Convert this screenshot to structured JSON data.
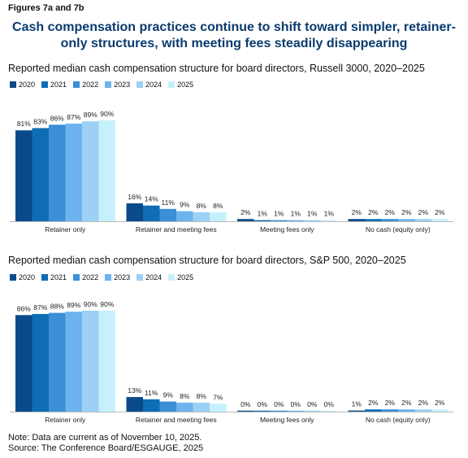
{
  "figure_label": "Figures 7a and 7b",
  "headline": "Cash compensation practices continue to shift toward simpler, retainer-only structures, with meeting fees steadily disappearing",
  "note": "Note: Data are current as of November 10, 2025.",
  "source": "Source: The Conference Board/ESGAUGE, 2025",
  "colors": [
    "#0a4a8a",
    "#0f6db5",
    "#3a8fd6",
    "#6fb3ee",
    "#9dd0f5",
    "#c6f0fb"
  ],
  "chart_data": [
    {
      "type": "bar",
      "title": "Reported median cash compensation structure for board directors, Russell 3000, 2020–2025",
      "categories": [
        "Retainer only",
        "Retainer and meeting fees",
        "Meeting fees only",
        "No cash (equity only)"
      ],
      "series": [
        {
          "name": "2020",
          "values": [
            81,
            16,
            2,
            2
          ]
        },
        {
          "name": "2021",
          "values": [
            83,
            14,
            1,
            2
          ]
        },
        {
          "name": "2022",
          "values": [
            86,
            11,
            1,
            2
          ]
        },
        {
          "name": "2023",
          "values": [
            87,
            9,
            1,
            2
          ]
        },
        {
          "name": "2024",
          "values": [
            89,
            8,
            1,
            2
          ]
        },
        {
          "name": "2025",
          "values": [
            90,
            8,
            1,
            2
          ]
        }
      ],
      "value_suffix": "%",
      "ylim": [
        0,
        100
      ]
    },
    {
      "type": "bar",
      "title": "Reported median cash compensation structure for board directors, S&P 500, 2020–2025",
      "categories": [
        "Retainer only",
        "Retainer and meeting fees",
        "Meeting fees only",
        "No cash (equity only)"
      ],
      "series": [
        {
          "name": "2020",
          "values": [
            86,
            13,
            0,
            1
          ]
        },
        {
          "name": "2021",
          "values": [
            87,
            11,
            0,
            2
          ]
        },
        {
          "name": "2022",
          "values": [
            88,
            9,
            0,
            2
          ]
        },
        {
          "name": "2023",
          "values": [
            89,
            8,
            0,
            2
          ]
        },
        {
          "name": "2024",
          "values": [
            90,
            8,
            0,
            2
          ]
        },
        {
          "name": "2025",
          "values": [
            90,
            7,
            0,
            2
          ]
        }
      ],
      "value_suffix": "%",
      "ylim": [
        0,
        100
      ]
    }
  ]
}
